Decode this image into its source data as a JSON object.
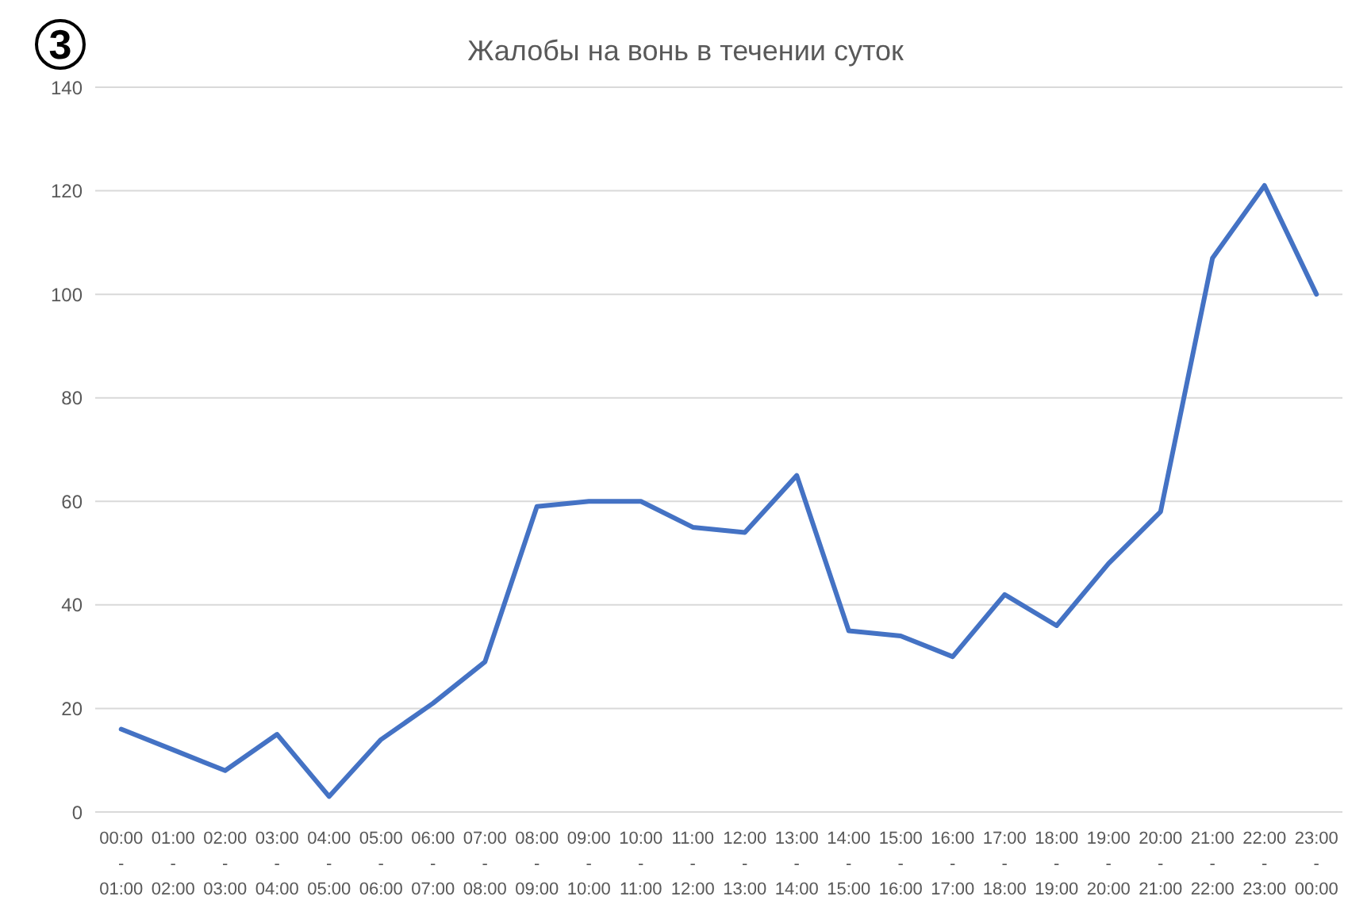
{
  "chart_data": {
    "type": "line",
    "title": "Жалобы на вонь в течении суток",
    "annotations": [
      "3"
    ],
    "categories": [
      "00:00 - 01:00",
      "01:00 - 02:00",
      "02:00 - 03:00",
      "03:00 - 04:00",
      "04:00 - 05:00",
      "05:00 - 06:00",
      "06:00 - 07:00",
      "07:00 - 08:00",
      "08:00 - 09:00",
      "09:00 - 10:00",
      "10:00 - 11:00",
      "11:00 - 12:00",
      "12:00 - 13:00",
      "13:00 - 14:00",
      "14:00 - 15:00",
      "15:00 - 16:00",
      "16:00 - 17:00",
      "17:00 - 18:00",
      "18:00 - 19:00",
      "19:00 - 20:00",
      "20:00 - 21:00",
      "21:00 - 22:00",
      "22:00 - 23:00",
      "23:00 - 00:00"
    ],
    "series": [
      {
        "color": "#4472c4",
        "values": [
          16,
          12,
          8,
          15,
          3,
          14,
          21,
          29,
          59,
          60,
          60,
          55,
          54,
          65,
          35,
          34,
          30,
          42,
          36,
          48,
          58,
          107,
          121,
          100
        ]
      }
    ],
    "ylim": [
      0,
      140
    ],
    "yticks": [
      0,
      20,
      40,
      60,
      80,
      100,
      120,
      140
    ],
    "grid": "y",
    "legend": false,
    "marker": "none",
    "line_style": "solid"
  }
}
